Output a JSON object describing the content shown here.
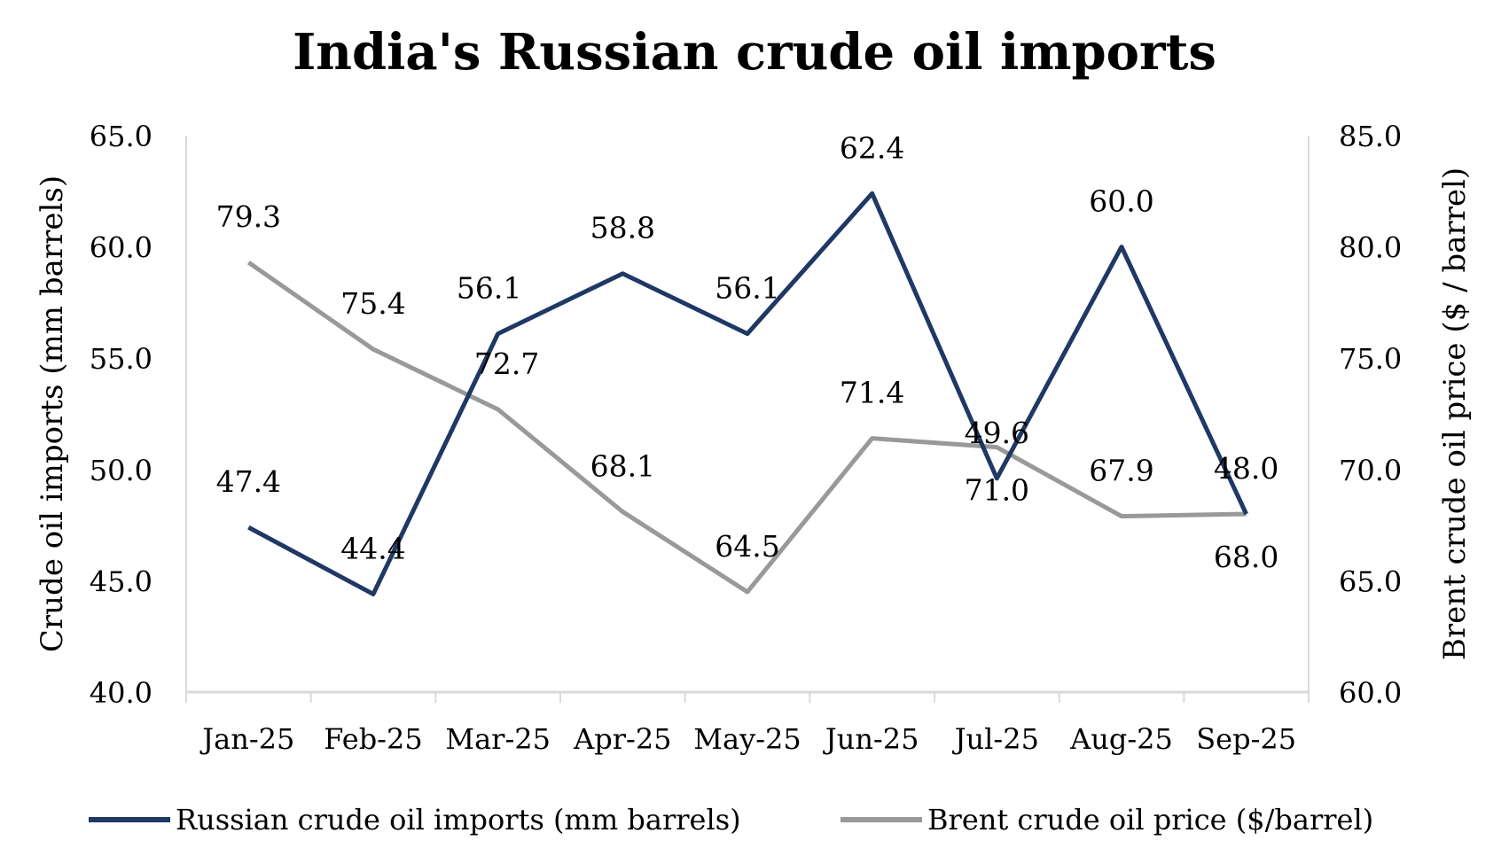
{
  "chart_data": {
    "type": "line",
    "title": "India's Russian crude oil imports",
    "categories": [
      "Jan-25",
      "Feb-25",
      "Mar-25",
      "Apr-25",
      "May-25",
      "Jun-25",
      "Jul-25",
      "Aug-25",
      "Sep-25"
    ],
    "series": [
      {
        "name": "Russian crude oil imports (mm barrels)",
        "axis": "left",
        "color": "#1f3864",
        "values": [
          47.4,
          44.4,
          56.1,
          58.8,
          56.1,
          62.4,
          49.6,
          60.0,
          48.0
        ]
      },
      {
        "name": "Brent crude oil price ($/barrel)",
        "axis": "right",
        "color": "#999999",
        "values": [
          79.3,
          75.4,
          72.7,
          68.1,
          64.5,
          71.4,
          71.0,
          67.9,
          68.0
        ]
      }
    ],
    "ylabel": "Crude oil imports (mm barrels)",
    "ylabel_right": "Brent crude oil price ($ / barrel)",
    "ylim": [
      40,
      65
    ],
    "ylim_right": [
      60,
      85
    ],
    "yticks": [
      "40.0",
      "45.0",
      "50.0",
      "55.0",
      "60.0",
      "65.0"
    ],
    "yticks_right": [
      "60.0",
      "65.0",
      "70.0",
      "75.0",
      "80.0",
      "85.0"
    ],
    "grid": false,
    "legend": "bottom"
  }
}
